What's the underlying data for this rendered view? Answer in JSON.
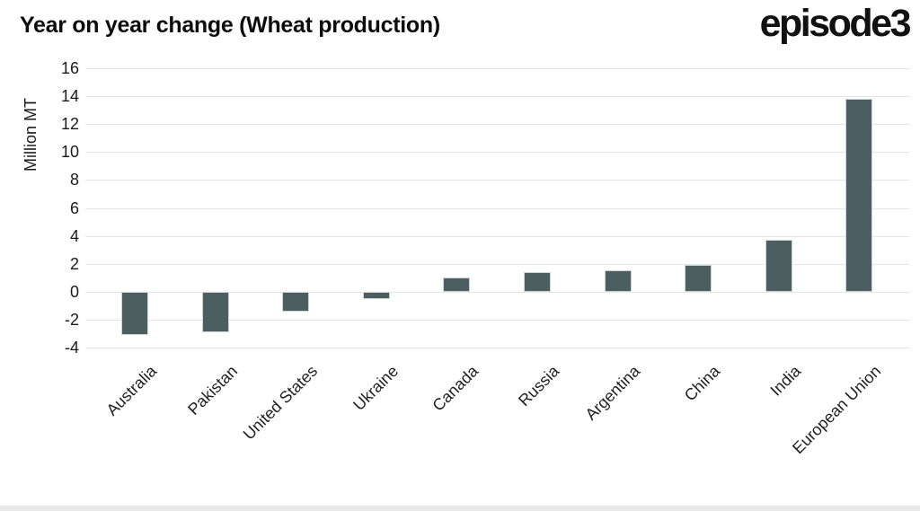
{
  "header": {
    "title": "Year on year change (Wheat production)",
    "logo_text": "episode3"
  },
  "chart_data": {
    "type": "bar",
    "title": "Year on year change (Wheat production)",
    "xlabel": "",
    "ylabel": "Million MT",
    "categories": [
      "Australia",
      "Pakistan",
      "United States",
      "Ukraine",
      "Canada",
      "Russia",
      "Argentina",
      "China",
      "India",
      "European Union"
    ],
    "values": [
      -3.1,
      -2.9,
      -1.4,
      -0.5,
      1.0,
      1.4,
      1.5,
      1.9,
      3.7,
      13.8
    ],
    "ylim": [
      -4,
      16
    ],
    "ytick_step": 2,
    "grid": true,
    "legend_position": "none",
    "colors": {
      "bar_fill": "#4c5e5f",
      "bar_border": "#ccd6d6",
      "gridline": "#e4e4e4",
      "text": "#1a1a1a"
    }
  }
}
